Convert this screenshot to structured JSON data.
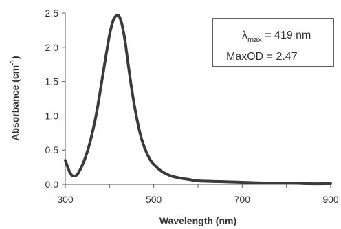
{
  "chart_data": {
    "type": "line",
    "title": "",
    "xlabel": "Wavelength (nm)",
    "ylabel": {
      "base": "Absorbance (cm",
      "sup": "-1",
      "end": ")"
    },
    "xlim": [
      300,
      900
    ],
    "ylim": [
      0,
      2.5
    ],
    "x_ticks": [
      "300",
      "500",
      "700",
      "900"
    ],
    "y_ticks": [
      "0.0",
      "0.5",
      "1.0",
      "1.5",
      "2.0",
      "2.5"
    ],
    "grid": false,
    "legend": "none",
    "series": [
      {
        "x": [
          300,
          305,
          310,
          315,
          320,
          325,
          330,
          340,
          350,
          360,
          370,
          380,
          390,
          400,
          405,
          410,
          415,
          419,
          423,
          428,
          435,
          440,
          450,
          460,
          470,
          480,
          490,
          500,
          520,
          540,
          560,
          580,
          600,
          650,
          700,
          750,
          800,
          850,
          900
        ],
        "y": [
          0.35,
          0.26,
          0.18,
          0.13,
          0.12,
          0.13,
          0.17,
          0.3,
          0.48,
          0.72,
          1.02,
          1.4,
          1.8,
          2.18,
          2.32,
          2.42,
          2.46,
          2.47,
          2.44,
          2.34,
          2.1,
          1.86,
          1.4,
          1.02,
          0.72,
          0.52,
          0.38,
          0.29,
          0.18,
          0.12,
          0.09,
          0.07,
          0.05,
          0.04,
          0.03,
          0.02,
          0.02,
          0.01,
          0.01
        ]
      }
    ],
    "annotation": {
      "lambda_symbol": "λ",
      "lambda_sub": "max",
      "lambda_value": " = 419 nm",
      "maxod": "MaxOD = 2.47"
    }
  },
  "colors": {
    "line": "#3a3a3a",
    "axis": "#555555",
    "text": "#333333"
  }
}
